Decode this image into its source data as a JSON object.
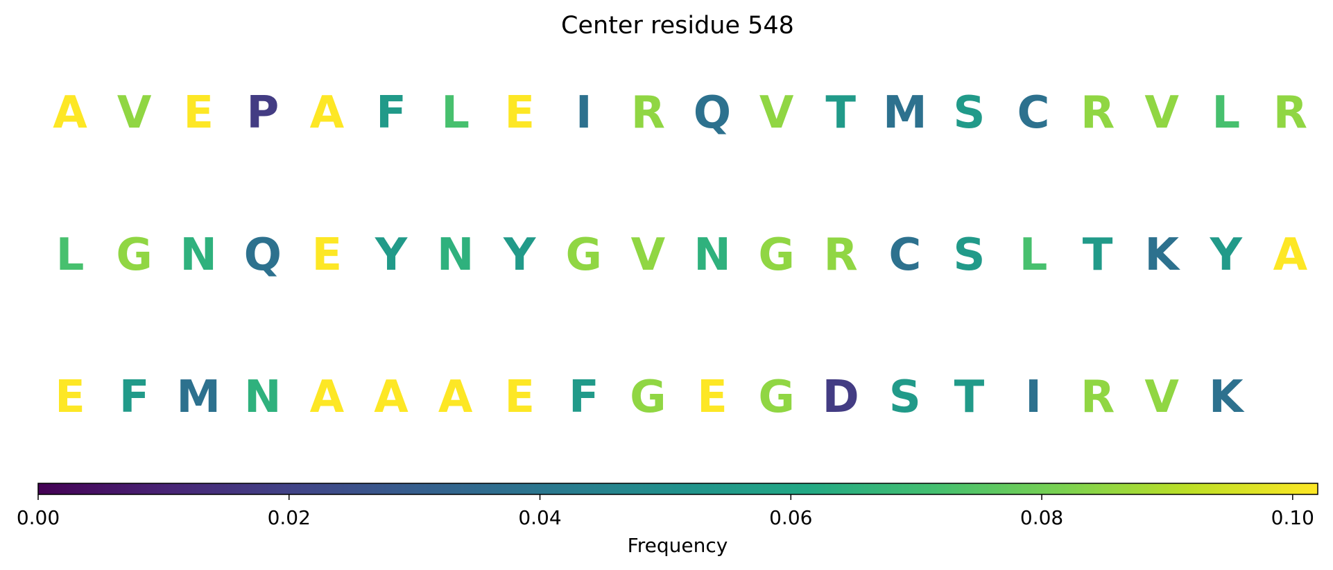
{
  "chart_data": {
    "type": "heatmap",
    "title": "Center residue 548",
    "colormap": "viridis",
    "rows": [
      {
        "residues": [
          "A",
          "V",
          "E",
          "P",
          "A",
          "F",
          "L",
          "E",
          "I",
          "R",
          "Q",
          "V",
          "T",
          "M",
          "S",
          "C",
          "R",
          "V",
          "L",
          "R"
        ],
        "values": [
          0.102,
          0.085,
          0.102,
          0.018,
          0.102,
          0.055,
          0.072,
          0.102,
          0.038,
          0.085,
          0.038,
          0.085,
          0.055,
          0.038,
          0.055,
          0.038,
          0.085,
          0.085,
          0.072,
          0.085
        ]
      },
      {
        "residues": [
          "L",
          "G",
          "N",
          "Q",
          "E",
          "Y",
          "N",
          "Y",
          "G",
          "V",
          "N",
          "G",
          "R",
          "C",
          "S",
          "L",
          "T",
          "K",
          "Y",
          "A"
        ],
        "values": [
          0.072,
          0.085,
          0.065,
          0.038,
          0.102,
          0.055,
          0.065,
          0.055,
          0.085,
          0.085,
          0.065,
          0.085,
          0.085,
          0.038,
          0.055,
          0.072,
          0.055,
          0.038,
          0.055,
          0.102
        ]
      },
      {
        "residues": [
          "E",
          "F",
          "M",
          "N",
          "A",
          "A",
          "A",
          "E",
          "F",
          "G",
          "E",
          "G",
          "D",
          "S",
          "T",
          "I",
          "R",
          "V",
          "K"
        ],
        "values": [
          0.102,
          0.055,
          0.038,
          0.065,
          0.102,
          0.102,
          0.102,
          0.102,
          0.055,
          0.085,
          0.102,
          0.085,
          0.018,
          0.055,
          0.055,
          0.038,
          0.085,
          0.085,
          0.038
        ]
      }
    ],
    "colorbar": {
      "label": "Frequency",
      "vmin": 0.0,
      "vmax": 0.102,
      "ticks": [
        0.0,
        0.02,
        0.04,
        0.06,
        0.08,
        0.1
      ],
      "tick_labels": [
        "0.00",
        "0.02",
        "0.04",
        "0.06",
        "0.08",
        "0.10"
      ],
      "orientation": "horizontal",
      "placement": "bottom"
    }
  }
}
